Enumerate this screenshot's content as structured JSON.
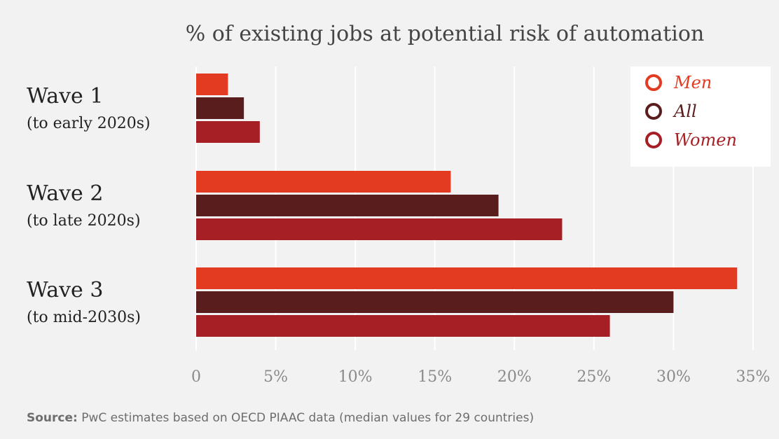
{
  "chart_data": {
    "type": "bar",
    "orientation": "horizontal",
    "title": "% of existing jobs at potential risk of automation",
    "categories": [
      {
        "name": "Wave 1",
        "subtitle": "(to early 2020s)"
      },
      {
        "name": "Wave 2",
        "subtitle": "(to late 2020s)"
      },
      {
        "name": "Wave 3",
        "subtitle": "(to mid-2030s)"
      }
    ],
    "series": [
      {
        "name": "Men",
        "color": "#e23b22",
        "values": [
          2,
          16,
          34
        ]
      },
      {
        "name": "All",
        "color": "#5a1d1d",
        "values": [
          3,
          19,
          30
        ]
      },
      {
        "name": "Women",
        "color": "#a61f24",
        "values": [
          4,
          23,
          26
        ]
      }
    ],
    "xlim": [
      0,
      35
    ],
    "xticks": [
      0,
      5,
      10,
      15,
      20,
      25,
      30,
      35
    ],
    "xtick_labels": [
      "0",
      "5%",
      "10%",
      "15%",
      "20%",
      "25%",
      "30%",
      "35%"
    ],
    "grid": true,
    "legend_position": "top-right"
  },
  "source": {
    "label": "Source:",
    "text": " PwC estimates based on OECD PIAAC data (median values for 29 countries)"
  }
}
